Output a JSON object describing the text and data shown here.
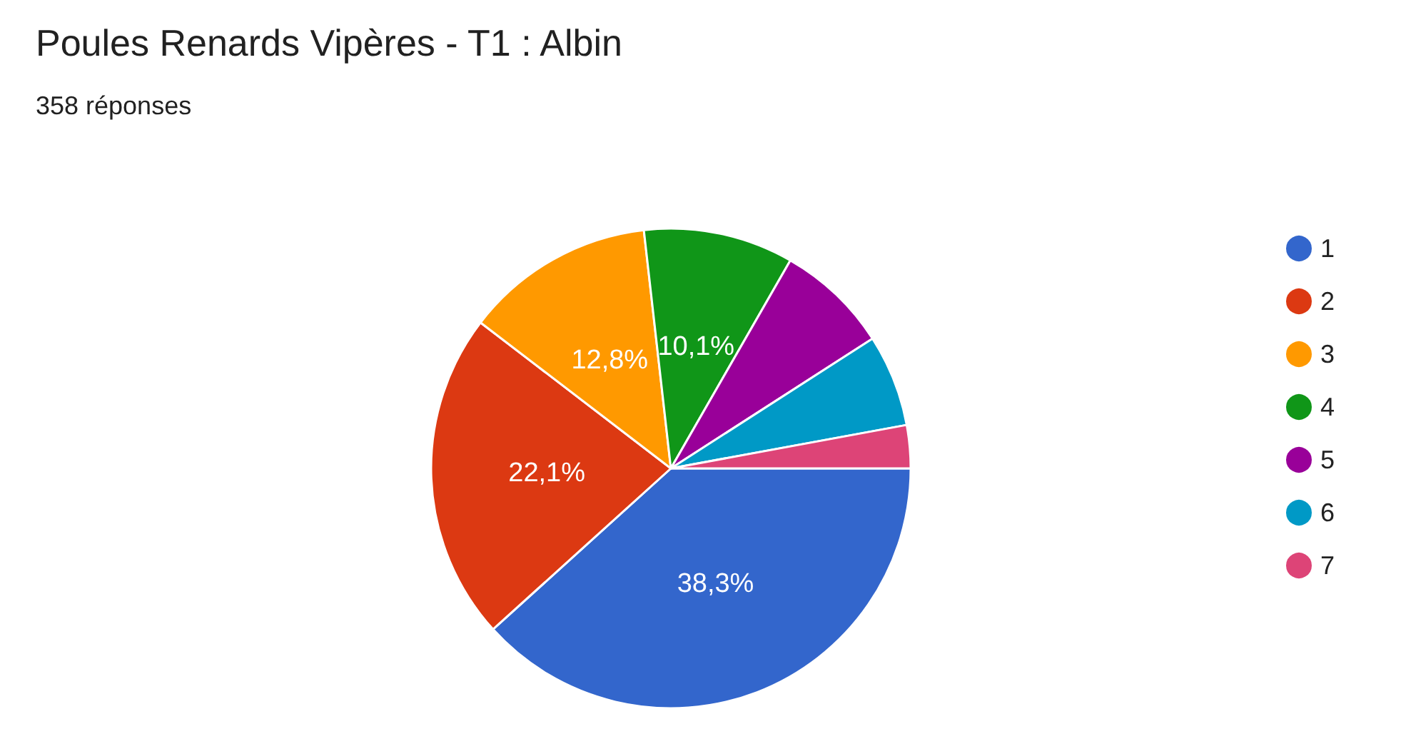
{
  "chart_data": {
    "type": "pie",
    "title": "Poules Renards Vipères - T1 : Albin",
    "subtitle": "358 réponses",
    "categories": [
      "1",
      "2",
      "3",
      "4",
      "5",
      "6",
      "7"
    ],
    "values": [
      38.3,
      22.1,
      12.8,
      10.1,
      7.6,
      6.2,
      2.9
    ],
    "value_labels": [
      "38,3%",
      "22,1%",
      "12,8%",
      "10,1%",
      null,
      null,
      null
    ],
    "colors": [
      "#3366cc",
      "#dc3912",
      "#ff9900",
      "#109618",
      "#990099",
      "#0099c6",
      "#dd4477"
    ],
    "legend": "right"
  }
}
